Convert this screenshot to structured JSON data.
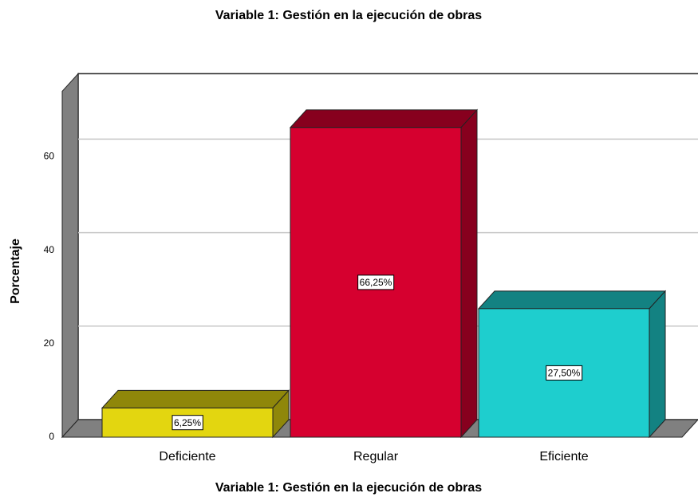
{
  "chart_data": {
    "type": "bar3d",
    "title": "Variable 1: Gestión en la ejecución de obras",
    "x_label": "Variable 1: Gestión en la ejecución de obras",
    "y_label": "Porcentaje",
    "categories": [
      "Deficiente",
      "Regular",
      "Eficiente"
    ],
    "values": [
      6.25,
      66.25,
      27.5
    ],
    "value_labels": [
      "6,25%",
      "66,25%",
      "27,50%"
    ],
    "colors": [
      "#e3d610",
      "#d6002f",
      "#1ecece"
    ],
    "ylim": [
      0,
      74
    ],
    "yticks": [
      0,
      20,
      40,
      60
    ],
    "grid": true
  }
}
